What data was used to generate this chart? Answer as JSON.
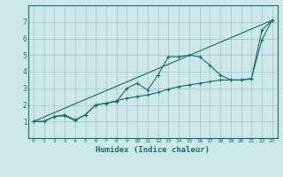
{
  "xlabel": "Humidex (Indice chaleur)",
  "ylabel": "",
  "bg_color": "#cce8e8",
  "grid_color": "#aac8c8",
  "line_color": "#1a6b6b",
  "xlim": [
    -0.5,
    23.5
  ],
  "ylim": [
    0,
    8
  ],
  "xticks": [
    0,
    1,
    2,
    3,
    4,
    5,
    6,
    7,
    8,
    9,
    10,
    11,
    12,
    13,
    14,
    15,
    16,
    17,
    18,
    19,
    20,
    21,
    22,
    23
  ],
  "yticks": [
    1,
    2,
    3,
    4,
    5,
    6,
    7
  ],
  "line1_x": [
    0,
    1,
    2,
    3,
    4,
    5,
    6,
    7,
    8,
    9,
    10,
    11,
    12,
    13,
    14,
    15,
    16,
    17,
    18,
    19,
    20,
    21,
    22,
    23
  ],
  "line1_y": [
    1.0,
    1.0,
    1.3,
    1.4,
    1.1,
    1.4,
    2.0,
    2.1,
    2.2,
    3.0,
    3.3,
    2.9,
    3.8,
    4.9,
    4.9,
    5.0,
    4.9,
    4.4,
    3.8,
    3.5,
    3.5,
    3.6,
    5.9,
    7.1
  ],
  "line2_x": [
    0,
    1,
    2,
    3,
    4,
    5,
    6,
    7,
    8,
    9,
    10,
    11,
    12,
    13,
    14,
    15,
    16,
    17,
    18,
    19,
    20,
    21,
    22,
    23
  ],
  "line2_y": [
    1.0,
    1.0,
    1.3,
    1.35,
    1.05,
    1.4,
    2.0,
    2.1,
    2.25,
    2.4,
    2.5,
    2.6,
    2.75,
    2.95,
    3.1,
    3.2,
    3.3,
    3.4,
    3.5,
    3.5,
    3.5,
    3.55,
    6.5,
    7.1
  ],
  "line3_x": [
    0,
    23
  ],
  "line3_y": [
    1.0,
    7.1
  ]
}
